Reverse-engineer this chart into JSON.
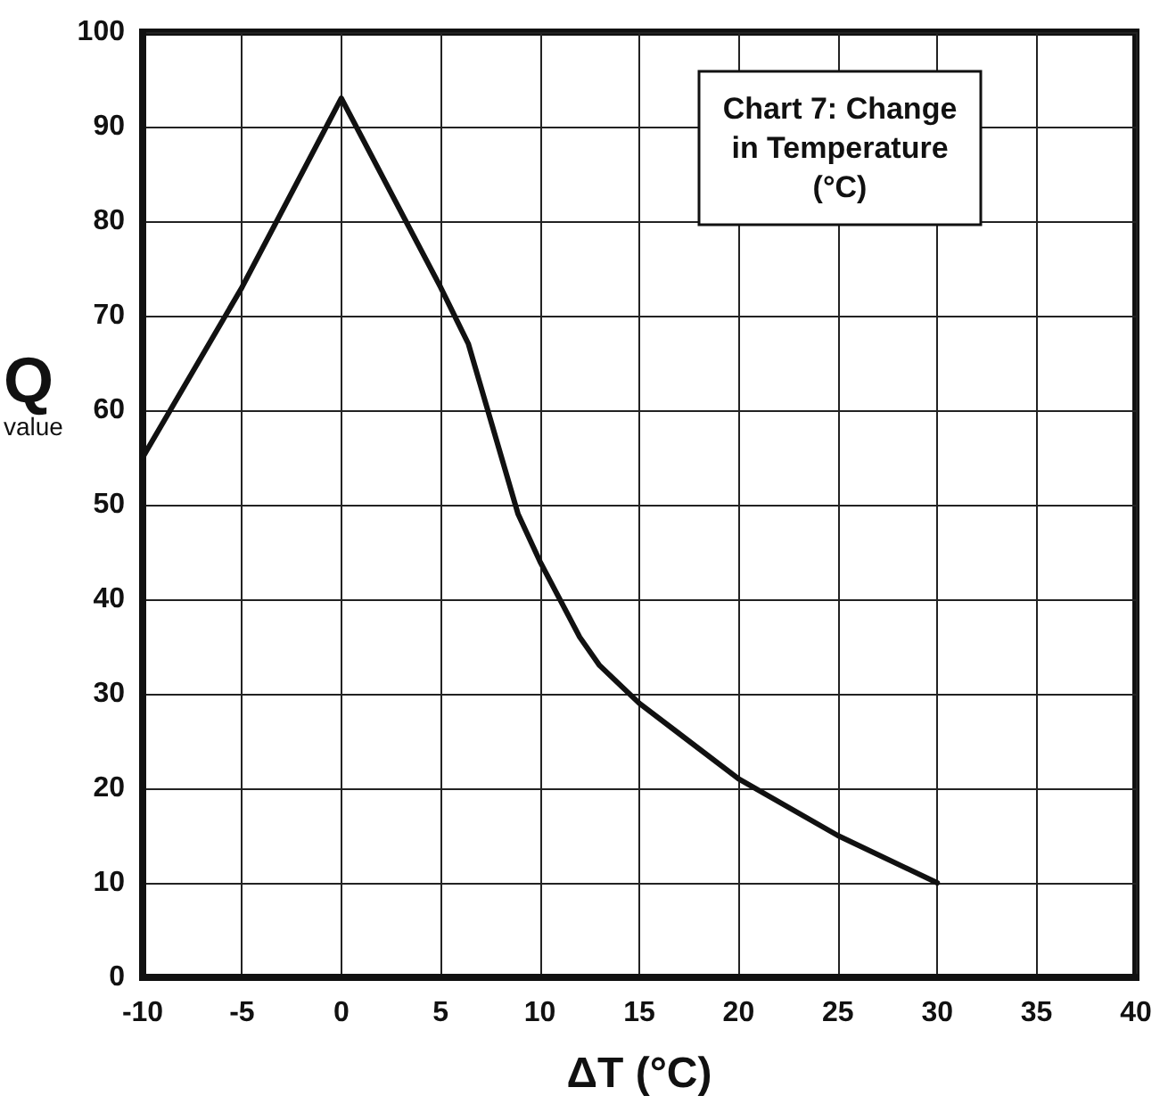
{
  "chart_data": {
    "type": "line",
    "title": "Chart 7: Change in Temperature (°C)",
    "xlabel": "ΔT (°C)",
    "ylabel": "Q value",
    "x": [
      -10,
      -5,
      0,
      5,
      6.4,
      8.9,
      10,
      12,
      13,
      15,
      20,
      25,
      30
    ],
    "values": [
      55,
      73,
      93,
      73,
      67,
      49,
      44,
      36,
      33,
      29,
      21,
      15,
      10
    ],
    "color": "#111111",
    "xlim": [
      -10,
      40
    ],
    "xticks": [
      -10,
      -5,
      0,
      5,
      10,
      15,
      20,
      25,
      30,
      35,
      40
    ],
    "ylim": [
      0,
      100
    ],
    "yticks": [
      0,
      10,
      20,
      30,
      40,
      50,
      60,
      70,
      80,
      90,
      100
    ],
    "grid": true,
    "marker": "none",
    "line_style": "solid"
  }
}
